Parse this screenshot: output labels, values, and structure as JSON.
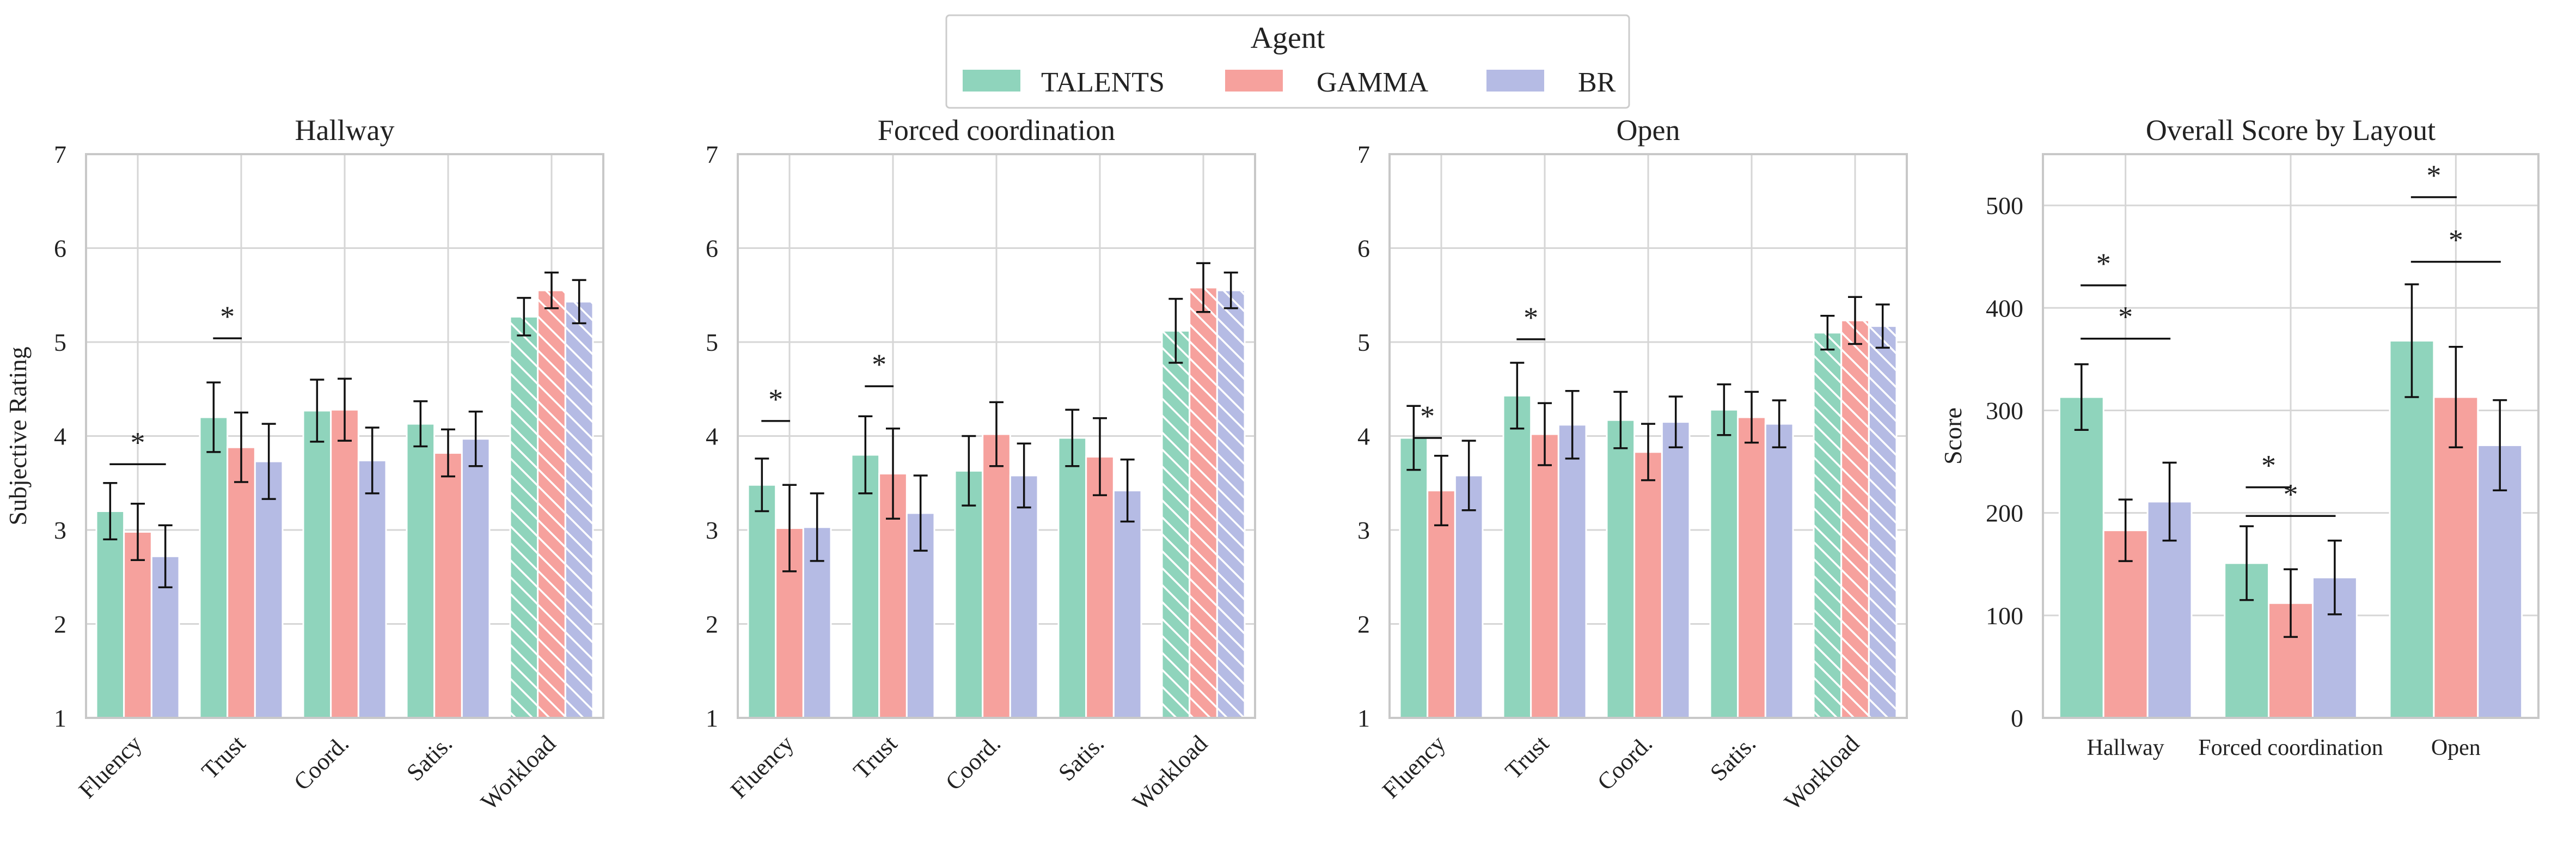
{
  "legend": {
    "title": "Agent",
    "entries": [
      {
        "name": "TALENTS",
        "color": "#8fd4bc"
      },
      {
        "name": "GAMMA",
        "color": "#f6a19d"
      },
      {
        "name": "BR",
        "color": "#b5bbe4"
      }
    ]
  },
  "chart_data": [
    {
      "type": "bar",
      "title": "Hallway",
      "ylabel": "Subjective Rating",
      "ylim": [
        1,
        7
      ],
      "yticks": [
        "1",
        "2",
        "3",
        "4",
        "5",
        "6",
        "7"
      ],
      "categories": [
        "Fluency",
        "Trust",
        "Coord.",
        "Satis.",
        "Workload"
      ],
      "hatched_categories": [
        "Workload"
      ],
      "series": [
        {
          "name": "TALENTS",
          "values": [
            3.2,
            4.2,
            4.27,
            4.13,
            5.27
          ],
          "err": [
            0.3,
            0.37,
            0.33,
            0.24,
            0.2
          ]
        },
        {
          "name": "GAMMA",
          "values": [
            2.98,
            3.88,
            4.28,
            3.82,
            5.55
          ],
          "err": [
            0.3,
            0.37,
            0.33,
            0.25,
            0.19
          ]
        },
        {
          "name": "BR",
          "values": [
            2.72,
            3.73,
            3.74,
            3.97,
            5.43
          ],
          "err": [
            0.33,
            0.4,
            0.35,
            0.29,
            0.23
          ]
        }
      ],
      "significance": [
        {
          "category": "Fluency",
          "from": "TALENTS",
          "to": "BR",
          "y": 3.7,
          "label": "*"
        },
        {
          "category": "Trust",
          "from": "TALENTS",
          "to": "GAMMA",
          "y": 5.04,
          "label": "*"
        }
      ]
    },
    {
      "type": "bar",
      "title": "Forced coordination",
      "ylabel": "",
      "ylim": [
        1,
        7
      ],
      "yticks": [
        "1",
        "2",
        "3",
        "4",
        "5",
        "6",
        "7"
      ],
      "categories": [
        "Fluency",
        "Trust",
        "Coord.",
        "Satis.",
        "Workload"
      ],
      "hatched_categories": [
        "Workload"
      ],
      "series": [
        {
          "name": "TALENTS",
          "values": [
            3.48,
            3.8,
            3.63,
            3.98,
            5.12
          ],
          "err": [
            0.28,
            0.41,
            0.37,
            0.3,
            0.34
          ]
        },
        {
          "name": "GAMMA",
          "values": [
            3.02,
            3.6,
            4.02,
            3.78,
            5.58
          ],
          "err": [
            0.46,
            0.48,
            0.34,
            0.41,
            0.26
          ]
        },
        {
          "name": "BR",
          "values": [
            3.03,
            3.18,
            3.58,
            3.42,
            5.55
          ],
          "err": [
            0.36,
            0.4,
            0.34,
            0.33,
            0.19
          ]
        }
      ],
      "significance": [
        {
          "category": "Fluency",
          "from": "TALENTS",
          "to": "GAMMA",
          "y": 4.16,
          "label": "*"
        },
        {
          "category": "Trust",
          "from": "TALENTS",
          "to": "GAMMA",
          "y": 4.53,
          "label": "*"
        }
      ]
    },
    {
      "type": "bar",
      "title": "Open",
      "ylabel": "",
      "ylim": [
        1,
        7
      ],
      "yticks": [
        "1",
        "2",
        "3",
        "4",
        "5",
        "6",
        "7"
      ],
      "categories": [
        "Fluency",
        "Trust",
        "Coord.",
        "Satis.",
        "Workload"
      ],
      "hatched_categories": [
        "Workload"
      ],
      "series": [
        {
          "name": "TALENTS",
          "values": [
            3.98,
            4.43,
            4.17,
            4.28,
            5.1
          ],
          "err": [
            0.34,
            0.35,
            0.3,
            0.27,
            0.18
          ]
        },
        {
          "name": "GAMMA",
          "values": [
            3.42,
            4.02,
            3.83,
            4.2,
            5.23
          ],
          "err": [
            0.37,
            0.33,
            0.3,
            0.27,
            0.25
          ]
        },
        {
          "name": "BR",
          "values": [
            3.58,
            4.12,
            4.15,
            4.13,
            5.17
          ],
          "err": [
            0.37,
            0.36,
            0.27,
            0.25,
            0.23
          ]
        }
      ],
      "significance": [
        {
          "category": "Fluency",
          "from": "TALENTS",
          "to": "GAMMA",
          "y": 3.98,
          "label": "*"
        },
        {
          "category": "Trust",
          "from": "TALENTS",
          "to": "GAMMA",
          "y": 5.03,
          "label": "*"
        }
      ]
    },
    {
      "type": "bar",
      "title": "Overall Score by Layout",
      "ylabel": "Score",
      "ylim": [
        0,
        550
      ],
      "yticks": [
        "0",
        "100",
        "200",
        "300",
        "400",
        "500"
      ],
      "categories": [
        "Hallway",
        "Forced coordination",
        "Open"
      ],
      "hatched_categories": [],
      "series": [
        {
          "name": "TALENTS",
          "values": [
            313,
            151,
            368
          ],
          "err": [
            32,
            36,
            55
          ]
        },
        {
          "name": "GAMMA",
          "values": [
            183,
            112,
            313
          ],
          "err": [
            30,
            33,
            49
          ]
        },
        {
          "name": "BR",
          "values": [
            211,
            137,
            266
          ],
          "err": [
            38,
            36,
            44
          ]
        }
      ],
      "significance": [
        {
          "category": "Hallway",
          "from": "TALENTS",
          "to": "GAMMA",
          "y": 422,
          "label": "*"
        },
        {
          "category": "Hallway",
          "from": "TALENTS",
          "to": "BR",
          "y": 370,
          "label": "*"
        },
        {
          "category": "Forced coordination",
          "from": "TALENTS",
          "to": "GAMMA",
          "y": 225,
          "label": "*"
        },
        {
          "category": "Forced coordination",
          "from": "TALENTS",
          "to": "BR",
          "y": 197,
          "label": "*"
        },
        {
          "category": "Open",
          "from": "TALENTS",
          "to": "GAMMA",
          "y": 508,
          "label": "*"
        },
        {
          "category": "Open",
          "from": "TALENTS",
          "to": "BR",
          "y": 445,
          "label": "*"
        }
      ]
    }
  ]
}
